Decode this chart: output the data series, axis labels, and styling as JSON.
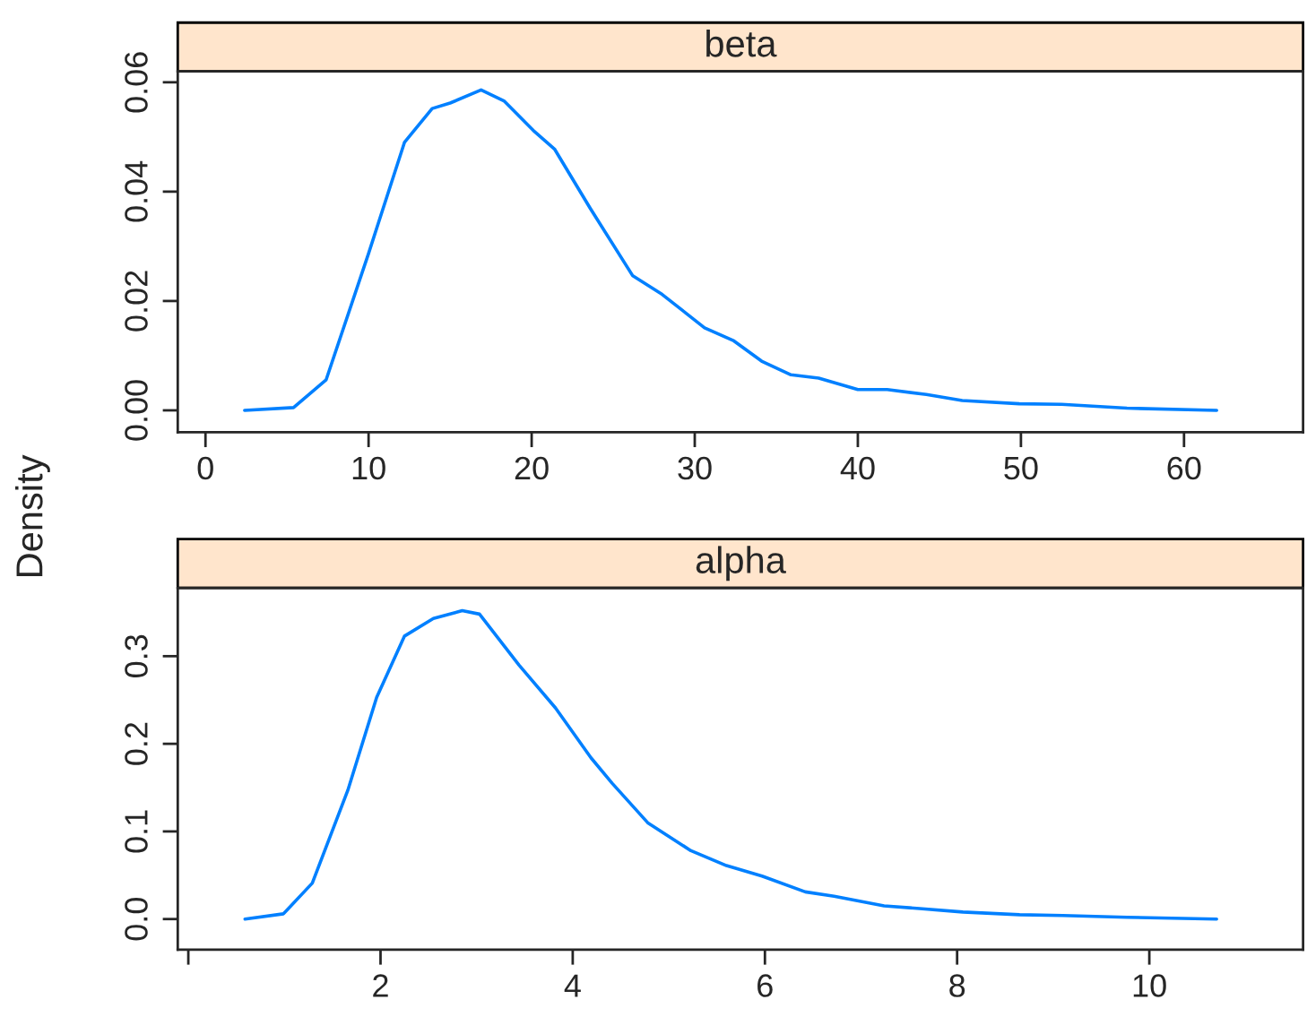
{
  "chart_data": [
    {
      "type": "line",
      "title": "beta",
      "ylabel": "Density",
      "grid": false,
      "legend": false,
      "marker": "none",
      "line_style": "solid",
      "series": [
        {
          "color": "#0080ff",
          "x": [
            2.4,
            5.4,
            7.4,
            10,
            12.2,
            13.9,
            15.0,
            16.9,
            18.3,
            20.1,
            21.4,
            23.6,
            26.2,
            28,
            30.6,
            32.4,
            34.1,
            35.9,
            37.6,
            40,
            41.8,
            44.2,
            46.4,
            49.9,
            52.5,
            56.5,
            62
          ],
          "values": [
            0,
            0.0005,
            0.0056,
            0.0287,
            0.049,
            0.0552,
            0.0562,
            0.0586,
            0.0566,
            0.0512,
            0.0478,
            0.0369,
            0.0246,
            0.0212,
            0.0151,
            0.0127,
            0.009,
            0.0065,
            0.0059,
            0.0038,
            0.0038,
            0.0029,
            0.0018,
            0.0012,
            0.0011,
            0.0004,
            0
          ]
        }
      ],
      "xlim": [
        -1.7,
        67.3
      ],
      "ylim": [
        -0.004,
        0.062
      ],
      "xticks": [
        0,
        10,
        20,
        30,
        40,
        50,
        60
      ],
      "yticks": [
        {
          "value": 0,
          "label": "0.00"
        },
        {
          "value": 0.02,
          "label": "0.02"
        },
        {
          "value": 0.04,
          "label": "0.04"
        },
        {
          "value": 0.06,
          "label": "0.06"
        }
      ]
    },
    {
      "type": "line",
      "title": "alpha",
      "grid": false,
      "legend": false,
      "marker": "none",
      "line_style": "solid",
      "series": [
        {
          "color": "#0080ff",
          "x": [
            0.59,
            0.99,
            1.29,
            1.66,
            1.96,
            2.25,
            2.55,
            2.85,
            3.03,
            3.44,
            3.82,
            4.19,
            4.41,
            4.78,
            5.23,
            5.6,
            5.97,
            6.42,
            6.72,
            7.24,
            7.61,
            8.06,
            8.65,
            9.1,
            9.77,
            10.7
          ],
          "values": [
            0,
            0.006,
            0.041,
            0.147,
            0.253,
            0.323,
            0.343,
            0.352,
            0.348,
            0.29,
            0.241,
            0.184,
            0.155,
            0.11,
            0.078,
            0.061,
            0.049,
            0.031,
            0.026,
            0.015,
            0.012,
            0.008,
            0.005,
            0.004,
            0.002,
            0
          ]
        }
      ],
      "xlim": [
        -0.11,
        11.6
      ],
      "ylim": [
        -0.035,
        0.378
      ],
      "xticks": [
        {
          "value": 0,
          "label": null
        },
        2,
        4,
        6,
        8,
        10
      ],
      "yticks": [
        {
          "value": 0,
          "label": "0.0"
        },
        {
          "value": 0.1,
          "label": "0.1"
        },
        {
          "value": 0.2,
          "label": "0.2"
        },
        {
          "value": 0.3,
          "label": "0.3"
        }
      ]
    }
  ]
}
